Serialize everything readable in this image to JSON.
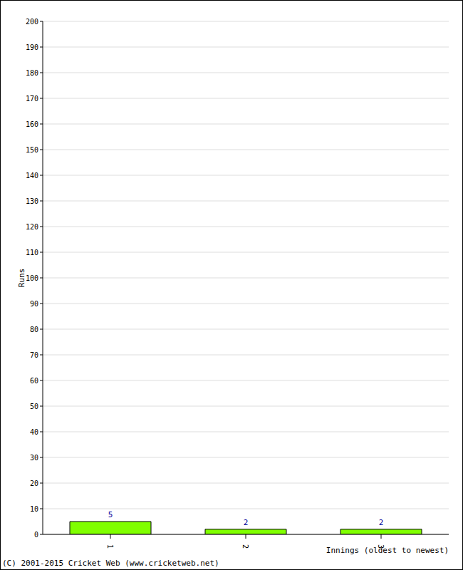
{
  "chart_data": {
    "type": "bar",
    "categories": [
      "1",
      "2",
      "3"
    ],
    "values": [
      5,
      2,
      2
    ],
    "color": "#80ff00",
    "ylim": [
      0,
      200
    ],
    "yticks": [
      0,
      10,
      20,
      30,
      40,
      50,
      60,
      70,
      80,
      90,
      100,
      110,
      120,
      130,
      140,
      150,
      160,
      170,
      180,
      190,
      200
    ],
    "grid": true,
    "data_labels": true,
    "x_label": "Innings (oldest to newest)",
    "y_label": "Runs",
    "footer": "(C) 2001-2015 Cricket Web (www.cricketweb.net)"
  }
}
